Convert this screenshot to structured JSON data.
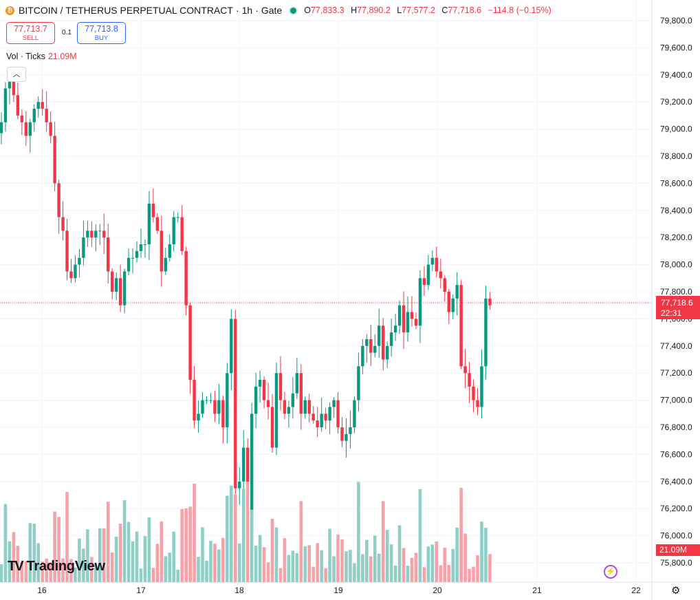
{
  "header": {
    "coin_icon": "bitcoin-icon",
    "title": "BITCOIN / TETHERUS PERPETUAL CONTRACT",
    "interval": "1h",
    "exchange": "Gate",
    "sep": "·",
    "ohlc": {
      "o_label": "O",
      "o": "77,833.3",
      "h_label": "H",
      "h": "77,890.2",
      "l_label": "L",
      "l": "77,577.2",
      "c_label": "C",
      "c": "77,718.6",
      "change": "−114.8 (−0.15%)"
    }
  },
  "trade": {
    "sell_price": "77,713.7",
    "sell_label": "SELL",
    "spread": "0.1",
    "buy_price": "77,713.8",
    "buy_label": "BUY"
  },
  "volume_legend": {
    "label": "Vol · Ticks",
    "value": "21.09M"
  },
  "last_price": {
    "price": "77,718.6",
    "countdown": "22:31"
  },
  "last_volume": "21.09M",
  "branding": {
    "name": "TradingView"
  },
  "colors": {
    "up": "#089981",
    "down": "#f23645",
    "up_vol": "#8fcfc5",
    "down_vol": "#f5a3a8",
    "grid": "#f0f3fa"
  },
  "chart_data": {
    "type": "candlestick",
    "title": "BITCOIN / TETHERUS PERPETUAL CONTRACT",
    "interval": "1h",
    "x_ticks": [
      "16",
      "17",
      "18",
      "19",
      "20",
      "21",
      "22"
    ],
    "y_ticks": [
      "79,800.0",
      "79,600.0",
      "79,400.0",
      "79,200.0",
      "79,000.0",
      "78,800.0",
      "78,600.0",
      "78,400.0",
      "78,200.0",
      "78,000.0",
      "77,800.0",
      "77,600.0",
      "77,400.0",
      "77,200.0",
      "77,000.0",
      "76,800.0",
      "76,600.0",
      "76,400.0",
      "76,200.0",
      "76,000.0",
      "75,800.0"
    ],
    "ylim": [
      75700,
      79900
    ],
    "grid": true,
    "last_price": 77718.6,
    "close_series": [
      79050,
      79300,
      79350,
      79250,
      79100,
      79050,
      78950,
      79050,
      79150,
      79200,
      79150,
      79050,
      78950,
      78600,
      78350,
      78250,
      77950,
      77900,
      78000,
      78050,
      78200,
      78250,
      78200,
      78250,
      78250,
      78200,
      77950,
      77800,
      77900,
      77700,
      77950,
      78050,
      78050,
      78100,
      78150,
      78150,
      78450,
      78350,
      78250,
      77950,
      78050,
      78150,
      78350,
      78350,
      78100,
      77700,
      77150,
      76850,
      76900,
      77000,
      77000,
      77000,
      76900,
      77000,
      76800,
      77200,
      77600,
      76350,
      76400,
      76650,
      76150,
      76900,
      77100,
      77150,
      77000,
      76950,
      76650,
      77200,
      77000,
      76900,
      76950,
      77050,
      77200,
      76900,
      77000,
      76900,
      76850,
      76800,
      76900,
      76850,
      76950,
      77000,
      76800,
      76700,
      76750,
      76800,
      77000,
      77250,
      77400,
      77450,
      77350,
      77400,
      77550,
      77300,
      77400,
      77500,
      77550,
      77700,
      77500,
      77650,
      77600,
      77550,
      77900,
      77850,
      78000,
      78050,
      77950,
      77900,
      77800,
      77650,
      77750,
      77850,
      77250,
      77200,
      77100,
      77000,
      76950,
      77250,
      77750,
      77700
    ],
    "volume_unit": "M",
    "last_volume": 21.09
  }
}
